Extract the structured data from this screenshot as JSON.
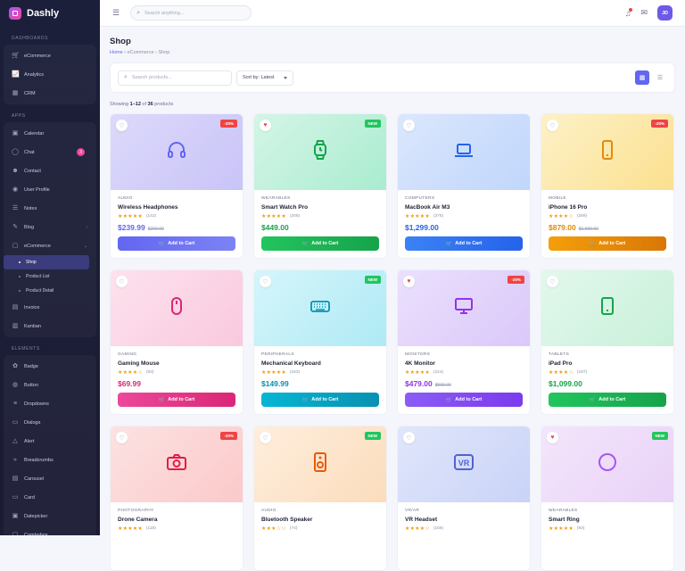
{
  "app": {
    "name": "Dashly"
  },
  "sidebar": {
    "sections": [
      {
        "title": "DASHBOARDS",
        "items": [
          {
            "label": "eCommerce",
            "icon": "cart-icon"
          },
          {
            "label": "Analytics",
            "icon": "chart-icon"
          },
          {
            "label": "CRM",
            "icon": "grid-icon"
          }
        ]
      },
      {
        "title": "APPS",
        "items": [
          {
            "label": "Calendar",
            "icon": "calendar-icon"
          },
          {
            "label": "Chat",
            "icon": "chat-icon",
            "badge": "3"
          },
          {
            "label": "Contact",
            "icon": "users-icon"
          },
          {
            "label": "User Profile",
            "icon": "user-icon"
          },
          {
            "label": "Notes",
            "icon": "notes-icon"
          },
          {
            "label": "Blog",
            "icon": "blog-icon",
            "chevron": "›"
          },
          {
            "label": "eCommerce",
            "icon": "bag-icon",
            "chevron": "⌄",
            "subs": [
              "Shop",
              "Product List",
              "Product Detail"
            ]
          },
          {
            "label": "Invoice",
            "icon": "invoice-icon"
          },
          {
            "label": "Kanban",
            "icon": "kanban-icon"
          }
        ]
      },
      {
        "title": "ELEMENTS",
        "items": [
          {
            "label": "Badge",
            "icon": "badge-icon"
          },
          {
            "label": "Button",
            "icon": "button-icon"
          },
          {
            "label": "Dropdowns",
            "icon": "dropdown-icon"
          },
          {
            "label": "Dialogs",
            "icon": "dialog-icon"
          },
          {
            "label": "Alert",
            "icon": "alert-icon"
          },
          {
            "label": "Breadcrumbs",
            "icon": "breadcrumb-icon"
          },
          {
            "label": "Carousel",
            "icon": "carousel-icon"
          },
          {
            "label": "Card",
            "icon": "card-icon"
          },
          {
            "label": "Datepicker",
            "icon": "datepicker-icon"
          },
          {
            "label": "Combobox",
            "icon": "combobox-icon"
          }
        ]
      }
    ]
  },
  "topbar": {
    "search_placeholder": "Search anything...",
    "avatar": "JD"
  },
  "page": {
    "title": "Shop",
    "breadcrumb": [
      "Home",
      "eCommerce",
      "Shop"
    ]
  },
  "filters": {
    "search_placeholder": "Search products...",
    "sort": "Sort by: Latest"
  },
  "showing": {
    "prefix": "Showing ",
    "range": "1–12",
    "mid": " of ",
    "total": "36",
    "suffix": " products"
  },
  "cart_label": "Add to Cart",
  "colors": {
    "accent": "#6366f1",
    "sale": "#ef4444",
    "new": "#22c55e",
    "star": "#f59e0b"
  },
  "products": [
    {
      "category": "AUDIO",
      "name": "Wireless Headphones",
      "stars": "★★★★★",
      "reviews": "(142)",
      "price": "$239.99",
      "old": "$299.99",
      "tag": "-20%",
      "tag_type": "sale",
      "fav": false,
      "icon": "headphones-icon",
      "bg": "linear-gradient(135deg,#dcd9fb,#c9c4f7)",
      "color": "#6366f1",
      "btn": "linear-gradient(90deg,#6366f1,#7c83f5)"
    },
    {
      "category": "WEARABLES",
      "name": "Smart Watch Pro",
      "stars": "★★★★★",
      "reviews": "(208)",
      "price": "$449.00",
      "old": "",
      "tag": "NEW",
      "tag_type": "new",
      "fav": true,
      "icon": "watch-icon",
      "bg": "linear-gradient(135deg,#d5f5e6,#a9ecd0)",
      "color": "#16a34a",
      "btn": "linear-gradient(90deg,#22c55e,#16a34a)"
    },
    {
      "category": "COMPUTERS",
      "name": "MacBook Air M3",
      "stars": "★★★★★",
      "reviews": "(376)",
      "price": "$1,299.00",
      "old": "",
      "tag": "",
      "tag_type": "",
      "fav": false,
      "icon": "laptop-icon",
      "bg": "linear-gradient(135deg,#dbe7fd,#c0d6fb)",
      "color": "#2563eb",
      "btn": "linear-gradient(90deg,#3b82f6,#2563eb)"
    },
    {
      "category": "MOBILE",
      "name": "iPhone 16 Pro",
      "stars": "★★★★☆",
      "reviews": "(289)",
      "price": "$879.00",
      "old": "$1,099.00",
      "tag": "-20%",
      "tag_type": "sale",
      "fav": false,
      "icon": "phone-icon",
      "bg": "linear-gradient(135deg,#fdf1c7,#fbe08f)",
      "color": "#e38a0b",
      "btn": "linear-gradient(90deg,#f59e0b,#d97706)"
    },
    {
      "category": "GAMING",
      "name": "Gaming Mouse",
      "stars": "★★★★☆",
      "reviews": "(93)",
      "price": "$69.99",
      "old": "",
      "tag": "",
      "tag_type": "",
      "fav": false,
      "icon": "mouse-icon",
      "bg": "linear-gradient(135deg,#fde2ee,#f9c9dd)",
      "color": "#db2777",
      "btn": "linear-gradient(90deg,#ec4899,#db2777)"
    },
    {
      "category": "PERIPHERALS",
      "name": "Mechanical Keyboard",
      "stars": "★★★★★",
      "reviews": "(163)",
      "price": "$149.99",
      "old": "",
      "tag": "NEW",
      "tag_type": "new",
      "fav": false,
      "icon": "keyboard-icon",
      "bg": "linear-gradient(135deg,#d6f5fb,#aeeaf5)",
      "color": "#0891b2",
      "btn": "linear-gradient(90deg,#06b6d4,#0891b2)"
    },
    {
      "category": "MONITORS",
      "name": "4K Monitor",
      "stars": "★★★★★",
      "reviews": "(224)",
      "price": "$479.00",
      "old": "$599.00",
      "tag": "-20%",
      "tag_type": "sale",
      "fav": true,
      "icon": "monitor-icon",
      "bg": "linear-gradient(135deg,#ebe0fc,#dac8fa)",
      "color": "#9333ea",
      "btn": "linear-gradient(90deg,#8b5cf6,#7c3aed)"
    },
    {
      "category": "TABLETS",
      "name": "iPad Pro",
      "stars": "★★★★☆",
      "reviews": "(187)",
      "price": "$1,099.00",
      "old": "",
      "tag": "",
      "tag_type": "",
      "fav": false,
      "icon": "tablet-icon",
      "bg": "linear-gradient(135deg,#e2f8ec,#c9f0da)",
      "color": "#16a34a",
      "btn": "linear-gradient(90deg,#22c55e,#16a34a)"
    },
    {
      "category": "PHOTOGRAPHY",
      "name": "Drone Camera",
      "stars": "★★★★★",
      "reviews": "(118)",
      "price": "",
      "old": "",
      "tag": "-20%",
      "tag_type": "sale",
      "fav": false,
      "icon": "camera-icon",
      "bg": "linear-gradient(135deg,#fde2e2,#fbc9c9)",
      "color": "#e11d48",
      "btn": "linear-gradient(90deg,#ef4444,#dc2626)"
    },
    {
      "category": "AUDIO",
      "name": "Bluetooth Speaker",
      "stars": "★★★☆☆",
      "reviews": "(74)",
      "price": "",
      "old": "",
      "tag": "NEW",
      "tag_type": "new",
      "fav": false,
      "icon": "speaker-icon",
      "bg": "linear-gradient(135deg,#feeedd,#fcdcbc)",
      "color": "#ea580c",
      "btn": "linear-gradient(90deg,#f97316,#ea580c)"
    },
    {
      "category": "VR/AR",
      "name": "VR Headset",
      "stars": "★★★★☆",
      "reviews": "(156)",
      "price": "",
      "old": "",
      "tag": "",
      "tag_type": "",
      "fav": false,
      "icon": "vr-icon",
      "bg": "linear-gradient(135deg,#e0e6fb,#c9d3f7)",
      "color": "#4f63d2",
      "btn": "linear-gradient(90deg,#6366f1,#4f46e5)"
    },
    {
      "category": "WEARABLES",
      "name": "Smart Ring",
      "stars": "★★★★★",
      "reviews": "(93)",
      "price": "",
      "old": "",
      "tag": "NEW",
      "tag_type": "new",
      "fav": true,
      "icon": "ring-icon",
      "bg": "linear-gradient(135deg,#f3e6fb,#e9d2f8)",
      "color": "#a855f7",
      "btn": "linear-gradient(90deg,#a855f7,#9333ea)"
    }
  ]
}
